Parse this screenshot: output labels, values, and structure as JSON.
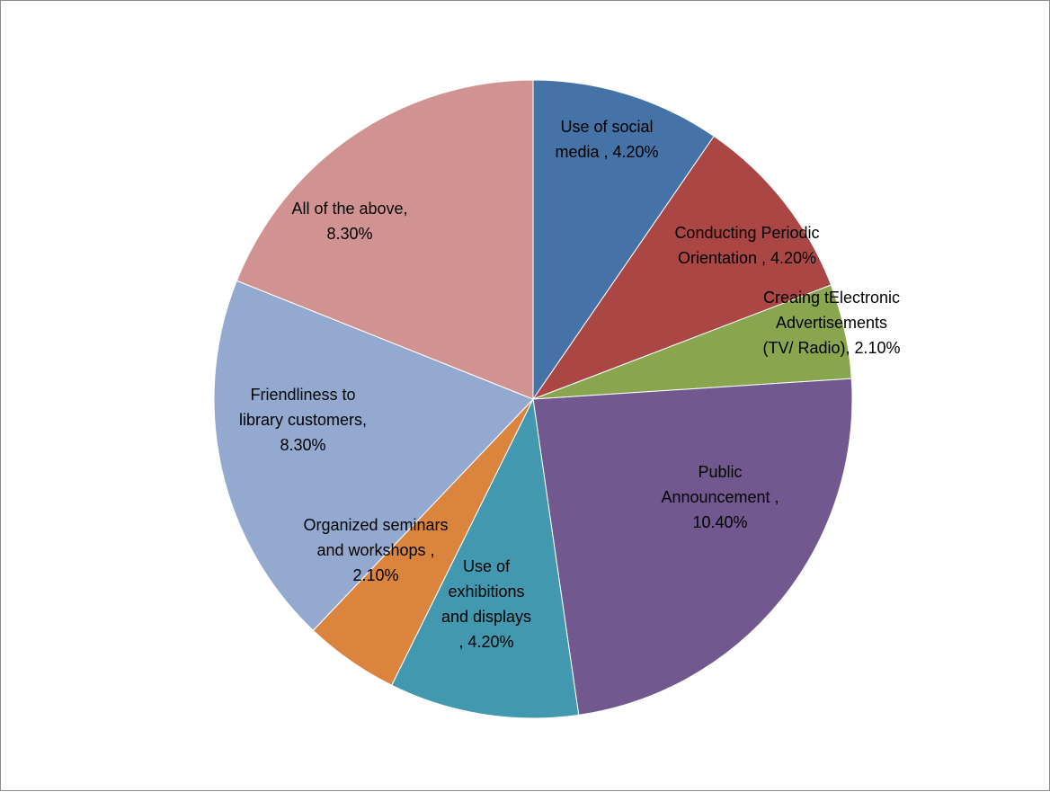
{
  "chart_data": {
    "type": "pie",
    "title": "",
    "legend": "none",
    "start_angle_deg": 0,
    "direction": "clockwise",
    "slices": [
      {
        "label_lines": [
          "Use of social",
          "media , 4.20%"
        ],
        "category": "Use of social media",
        "value": 4.2,
        "value_label": "4.20%",
        "color": "#4572A7"
      },
      {
        "label_lines": [
          "Conducting Periodic",
          "Orientation , 4.20%"
        ],
        "category": "Conducting Periodic Orientation",
        "value": 4.2,
        "value_label": "4.20%",
        "color": "#AA4643"
      },
      {
        "label_lines": [
          "Creaing tElectronic",
          "Advertisements",
          "(TV/ Radio), 2.10%"
        ],
        "category": "Creaing tElectronic Advertisements (TV/ Radio)",
        "value": 2.1,
        "value_label": "2.10%",
        "color": "#89A54E"
      },
      {
        "label_lines": [
          "Public",
          "Announcement ,",
          "10.40%"
        ],
        "category": "Public Announcement",
        "value": 10.4,
        "value_label": "10.40%",
        "color": "#71588F"
      },
      {
        "label_lines": [
          "Use of",
          "exhibitions",
          "and displays",
          ", 4.20%"
        ],
        "category": "Use of exhibitions and displays",
        "value": 4.2,
        "value_label": "4.20%",
        "color": "#4198AF"
      },
      {
        "label_lines": [
          "Organized seminars",
          "and workshops ,",
          "2.10%"
        ],
        "category": "Organized seminars and workshops",
        "value": 2.1,
        "value_label": "2.10%",
        "color": "#DB843D"
      },
      {
        "label_lines": [
          "Friendliness to",
          "library customers,",
          "8.30%"
        ],
        "category": "Friendliness to library customers",
        "value": 8.3,
        "value_label": "8.30%",
        "color": "#93A9CF"
      },
      {
        "label_lines": [
          "All of the above,",
          "8.30%"
        ],
        "category": "All of the above",
        "value": 8.3,
        "value_label": "8.30%",
        "color": "#D19392"
      }
    ]
  }
}
